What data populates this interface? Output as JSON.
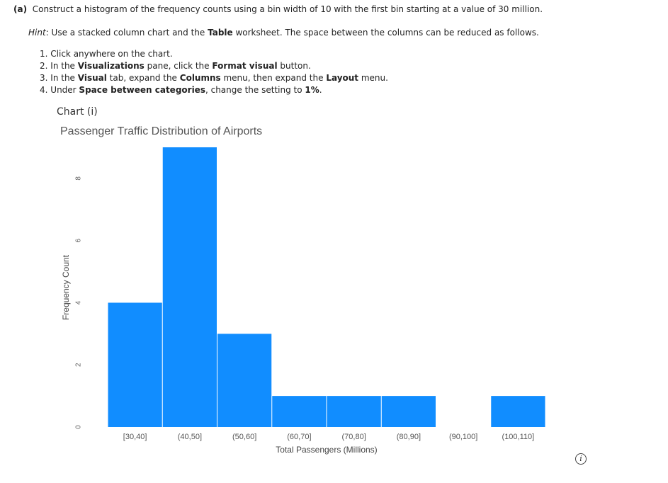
{
  "question": {
    "part": "(a)",
    "text": "Construct a histogram of the frequency counts using a bin width of 10 with the first bin starting at a value of 30 million."
  },
  "hint": {
    "label": "Hint",
    "t1": ": Use a stacked column chart and the ",
    "b1": "Table",
    "t2": " worksheet. The space between the columns can be reduced as follows."
  },
  "steps": [
    {
      "n": "1.",
      "t1": "Click anywhere on the chart.",
      "b1": "",
      "t2": "",
      "b2": "",
      "t3": "",
      "b3": "",
      "t4": ""
    },
    {
      "n": "2.",
      "t1": "In the ",
      "b1": "Visualizations",
      "t2": " pane, click the ",
      "b2": "Format visual",
      "t3": " button.",
      "b3": "",
      "t4": ""
    },
    {
      "n": "3.",
      "t1": "In the ",
      "b1": "Visual",
      "t2": " tab, expand the ",
      "b2": "Columns",
      "t3": " menu, then expand the ",
      "b3": "Layout",
      "t4": " menu."
    },
    {
      "n": "4.",
      "t1": "Under ",
      "b1": "Space between categories",
      "t2": ", change the setting to ",
      "b2": "1%",
      "t3": ".",
      "b3": "",
      "t4": ""
    }
  ],
  "chart_label": "Chart (i)",
  "chart_data": {
    "type": "bar",
    "title": "Passenger Traffic Distribution of Airports",
    "xlabel": "Total Passengers (Millions)",
    "ylabel": "Frequency Count",
    "categories": [
      "[30,40]",
      "(40,50]",
      "(50,60]",
      "(60,70]",
      "(70,80]",
      "(80,90]",
      "(90,100]",
      "(100,110]"
    ],
    "values": [
      4,
      9,
      3,
      1,
      1,
      1,
      0,
      1
    ],
    "yticks": [
      0,
      2,
      4,
      6,
      8
    ],
    "ylim": [
      0,
      9
    ],
    "grid": false,
    "color": "#118DFF"
  }
}
